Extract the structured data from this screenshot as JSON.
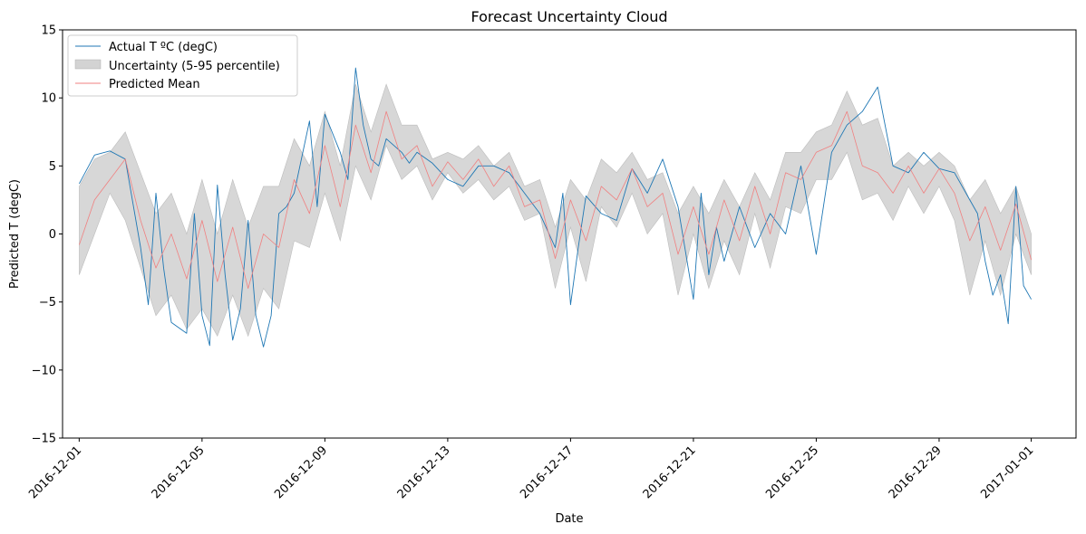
{
  "chart_data": {
    "type": "line",
    "title": "Forecast Uncertainty Cloud",
    "xlabel": "Date",
    "ylabel": "Predicted T (degC)",
    "xlim": [
      "2016-11-30T11:00",
      "2017-01-02T11:00"
    ],
    "ylim": [
      -15,
      15
    ],
    "yticks": [
      -15,
      -10,
      -5,
      0,
      5,
      10,
      15
    ],
    "xticks": [
      "2016-12-01",
      "2016-12-05",
      "2016-12-09",
      "2016-12-13",
      "2016-12-17",
      "2016-12-21",
      "2016-12-25",
      "2016-12-29",
      "2017-01-01"
    ],
    "grid": false,
    "legend": {
      "placement": "upper-left",
      "entries": [
        {
          "label": "Actual T ºC (degC)",
          "kind": "line",
          "color": "#1f77b4"
        },
        {
          "label": "Uncertainty (5-95 percentile)",
          "kind": "patch",
          "color": "#d3d3d3"
        },
        {
          "label": "Predicted Mean",
          "kind": "line",
          "color": "#f08080"
        }
      ]
    },
    "series": [
      {
        "name": "Actual T ºC (degC)",
        "color": "#1f77b4",
        "x": [
          "2016-12-01T00:00",
          "2016-12-01T12:00",
          "2016-12-02T00:00",
          "2016-12-02T12:00",
          "2016-12-03T00:00",
          "2016-12-03T06:00",
          "2016-12-03T12:00",
          "2016-12-03T18:00",
          "2016-12-04T00:00",
          "2016-12-04T12:00",
          "2016-12-04T18:00",
          "2016-12-05T00:00",
          "2016-12-05T06:00",
          "2016-12-05T12:00",
          "2016-12-05T18:00",
          "2016-12-06T00:00",
          "2016-12-06T06:00",
          "2016-12-06T12:00",
          "2016-12-06T18:00",
          "2016-12-07T00:00",
          "2016-12-07T06:00",
          "2016-12-07T12:00",
          "2016-12-07T18:00",
          "2016-12-08T00:00",
          "2016-12-08T12:00",
          "2016-12-08T18:00",
          "2016-12-09T00:00",
          "2016-12-09T12:00",
          "2016-12-09T18:00",
          "2016-12-10T00:00",
          "2016-12-10T06:00",
          "2016-12-10T12:00",
          "2016-12-10T18:00",
          "2016-12-11T00:00",
          "2016-12-11T12:00",
          "2016-12-11T18:00",
          "2016-12-12T00:00",
          "2016-12-12T12:00",
          "2016-12-13T00:00",
          "2016-12-13T12:00",
          "2016-12-14T00:00",
          "2016-12-14T12:00",
          "2016-12-15T00:00",
          "2016-12-15T12:00",
          "2016-12-16T00:00",
          "2016-12-16T12:00",
          "2016-12-16T18:00",
          "2016-12-17T00:00",
          "2016-12-17T06:00",
          "2016-12-17T12:00",
          "2016-12-18T00:00",
          "2016-12-18T12:00",
          "2016-12-19T00:00",
          "2016-12-19T12:00",
          "2016-12-20T00:00",
          "2016-12-20T12:00",
          "2016-12-21T00:00",
          "2016-12-21T06:00",
          "2016-12-21T12:00",
          "2016-12-21T18:00",
          "2016-12-22T00:00",
          "2016-12-22T12:00",
          "2016-12-23T00:00",
          "2016-12-23T12:00",
          "2016-12-24T00:00",
          "2016-12-24T12:00",
          "2016-12-25T00:00",
          "2016-12-25T12:00",
          "2016-12-26T00:00",
          "2016-12-26T12:00",
          "2016-12-27T00:00",
          "2016-12-27T12:00",
          "2016-12-28T00:00",
          "2016-12-28T12:00",
          "2016-12-29T00:00",
          "2016-12-29T12:00",
          "2016-12-30T00:00",
          "2016-12-30T06:00",
          "2016-12-30T12:00",
          "2016-12-30T18:00",
          "2016-12-31T00:00",
          "2016-12-31T06:00",
          "2016-12-31T12:00",
          "2016-12-31T18:00",
          "2017-01-01T00:00"
        ],
        "y": [
          3.7,
          5.8,
          6.1,
          5.5,
          -1.0,
          -5.2,
          3.0,
          -2.5,
          -6.5,
          -7.3,
          1.5,
          -6.0,
          -8.2,
          3.6,
          -3.0,
          -7.8,
          -5.5,
          1.0,
          -6.0,
          -8.3,
          -6.0,
          1.5,
          2.0,
          3.0,
          8.3,
          2.0,
          8.8,
          6.0,
          4.0,
          12.2,
          8.0,
          5.5,
          5.0,
          7.0,
          6.0,
          5.2,
          6.0,
          5.2,
          4.0,
          3.5,
          5.0,
          5.0,
          4.5,
          3.0,
          1.5,
          -1.0,
          3.0,
          -5.2,
          -1.0,
          2.8,
          1.5,
          1.0,
          4.8,
          3.0,
          5.5,
          2.0,
          -4.8,
          3.0,
          -3.0,
          0.5,
          -2.0,
          2.0,
          -1.0,
          1.5,
          0.0,
          5.0,
          -1.5,
          6.0,
          8.0,
          9.0,
          10.8,
          5.0,
          4.5,
          6.0,
          4.8,
          4.5,
          2.5,
          1.5,
          -2.0,
          -4.5,
          -3.0,
          -6.6,
          3.5,
          -3.8,
          -4.8
        ]
      },
      {
        "name": "Predicted Mean",
        "color": "#f08080",
        "x": [
          "2016-12-01T00:00",
          "2016-12-01T12:00",
          "2016-12-02T00:00",
          "2016-12-02T12:00",
          "2016-12-03T00:00",
          "2016-12-03T12:00",
          "2016-12-04T00:00",
          "2016-12-04T12:00",
          "2016-12-05T00:00",
          "2016-12-05T12:00",
          "2016-12-06T00:00",
          "2016-12-06T12:00",
          "2016-12-07T00:00",
          "2016-12-07T12:00",
          "2016-12-08T00:00",
          "2016-12-08T12:00",
          "2016-12-09T00:00",
          "2016-12-09T12:00",
          "2016-12-10T00:00",
          "2016-12-10T12:00",
          "2016-12-11T00:00",
          "2016-12-11T12:00",
          "2016-12-12T00:00",
          "2016-12-12T12:00",
          "2016-12-13T00:00",
          "2016-12-13T12:00",
          "2016-12-14T00:00",
          "2016-12-14T12:00",
          "2016-12-15T00:00",
          "2016-12-15T12:00",
          "2016-12-16T00:00",
          "2016-12-16T12:00",
          "2016-12-17T00:00",
          "2016-12-17T12:00",
          "2016-12-18T00:00",
          "2016-12-18T12:00",
          "2016-12-19T00:00",
          "2016-12-19T12:00",
          "2016-12-20T00:00",
          "2016-12-20T12:00",
          "2016-12-21T00:00",
          "2016-12-21T12:00",
          "2016-12-22T00:00",
          "2016-12-22T12:00",
          "2016-12-23T00:00",
          "2016-12-23T12:00",
          "2016-12-24T00:00",
          "2016-12-24T12:00",
          "2016-12-25T00:00",
          "2016-12-25T12:00",
          "2016-12-26T00:00",
          "2016-12-26T12:00",
          "2016-12-27T00:00",
          "2016-12-27T12:00",
          "2016-12-28T00:00",
          "2016-12-28T12:00",
          "2016-12-29T00:00",
          "2016-12-29T12:00",
          "2016-12-30T00:00",
          "2016-12-30T12:00",
          "2016-12-31T00:00",
          "2016-12-31T12:00",
          "2017-01-01T00:00"
        ],
        "y": [
          -0.8,
          2.5,
          4.0,
          5.5,
          1.0,
          -2.5,
          0.0,
          -3.3,
          1.0,
          -3.5,
          0.5,
          -4.0,
          0.0,
          -1.0,
          4.0,
          1.5,
          6.5,
          2.0,
          8.0,
          4.5,
          9.0,
          5.5,
          6.5,
          3.5,
          5.3,
          4.0,
          5.5,
          3.5,
          5.0,
          2.0,
          2.5,
          -1.8,
          2.5,
          -0.5,
          3.5,
          2.5,
          4.8,
          2.0,
          3.0,
          -1.5,
          2.0,
          -1.5,
          2.5,
          -0.5,
          3.5,
          0.0,
          4.5,
          4.0,
          6.0,
          6.5,
          9.0,
          5.0,
          4.5,
          3.0,
          5.0,
          3.0,
          4.8,
          3.0,
          -0.5,
          2.0,
          -1.2,
          2.2,
          -1.9
        ]
      }
    ],
    "band": {
      "name": "Uncertainty (5-95 percentile)",
      "color": "#d3d3d3",
      "x": [
        "2016-12-01T00:00",
        "2016-12-01T12:00",
        "2016-12-02T00:00",
        "2016-12-02T12:00",
        "2016-12-03T00:00",
        "2016-12-03T12:00",
        "2016-12-04T00:00",
        "2016-12-04T12:00",
        "2016-12-05T00:00",
        "2016-12-05T12:00",
        "2016-12-06T00:00",
        "2016-12-06T12:00",
        "2016-12-07T00:00",
        "2016-12-07T12:00",
        "2016-12-08T00:00",
        "2016-12-08T12:00",
        "2016-12-09T00:00",
        "2016-12-09T12:00",
        "2016-12-10T00:00",
        "2016-12-10T12:00",
        "2016-12-11T00:00",
        "2016-12-11T12:00",
        "2016-12-12T00:00",
        "2016-12-12T12:00",
        "2016-12-13T00:00",
        "2016-12-13T12:00",
        "2016-12-14T00:00",
        "2016-12-14T12:00",
        "2016-12-15T00:00",
        "2016-12-15T12:00",
        "2016-12-16T00:00",
        "2016-12-16T12:00",
        "2016-12-17T00:00",
        "2016-12-17T12:00",
        "2016-12-18T00:00",
        "2016-12-18T12:00",
        "2016-12-19T00:00",
        "2016-12-19T12:00",
        "2016-12-20T00:00",
        "2016-12-20T12:00",
        "2016-12-21T00:00",
        "2016-12-21T12:00",
        "2016-12-22T00:00",
        "2016-12-22T12:00",
        "2016-12-23T00:00",
        "2016-12-23T12:00",
        "2016-12-24T00:00",
        "2016-12-24T12:00",
        "2016-12-25T00:00",
        "2016-12-25T12:00",
        "2016-12-26T00:00",
        "2016-12-26T12:00",
        "2016-12-27T00:00",
        "2016-12-27T12:00",
        "2016-12-28T00:00",
        "2016-12-28T12:00",
        "2016-12-29T00:00",
        "2016-12-29T12:00",
        "2016-12-30T00:00",
        "2016-12-30T12:00",
        "2016-12-31T00:00",
        "2016-12-31T12:00",
        "2017-01-01T00:00"
      ],
      "upper": [
        3.5,
        5.5,
        6.0,
        7.5,
        4.5,
        1.5,
        3.0,
        0.0,
        4.0,
        0.0,
        4.0,
        0.5,
        3.5,
        3.5,
        7.0,
        5.0,
        9.0,
        5.0,
        11.0,
        7.5,
        11.0,
        8.0,
        8.0,
        5.5,
        6.0,
        5.5,
        6.5,
        5.0,
        6.0,
        3.5,
        4.0,
        0.5,
        4.0,
        2.5,
        5.5,
        4.5,
        6.0,
        4.0,
        4.5,
        1.5,
        3.5,
        1.5,
        4.0,
        2.0,
        4.5,
        2.5,
        6.0,
        6.0,
        7.5,
        8.0,
        10.5,
        8.0,
        8.5,
        5.0,
        6.0,
        5.0,
        6.0,
        5.0,
        2.5,
        4.0,
        1.5,
        3.5,
        0.0
      ],
      "lower": [
        -3.0,
        0.0,
        3.0,
        1.0,
        -2.5,
        -6.0,
        -4.5,
        -7.0,
        -5.5,
        -7.5,
        -4.5,
        -7.5,
        -4.0,
        -5.5,
        -0.5,
        -1.0,
        3.0,
        -0.5,
        5.0,
        2.5,
        6.5,
        4.0,
        5.0,
        2.5,
        4.5,
        3.0,
        4.0,
        2.5,
        3.5,
        1.0,
        1.5,
        -4.0,
        0.5,
        -3.5,
        2.0,
        0.5,
        3.0,
        0.0,
        1.5,
        -4.5,
        0.0,
        -4.0,
        -0.5,
        -3.0,
        1.5,
        -2.5,
        2.0,
        1.5,
        4.0,
        4.0,
        6.0,
        2.5,
        3.0,
        1.0,
        3.5,
        1.5,
        3.5,
        1.0,
        -4.5,
        -0.5,
        -4.5,
        0.0,
        -3.0
      ]
    }
  }
}
